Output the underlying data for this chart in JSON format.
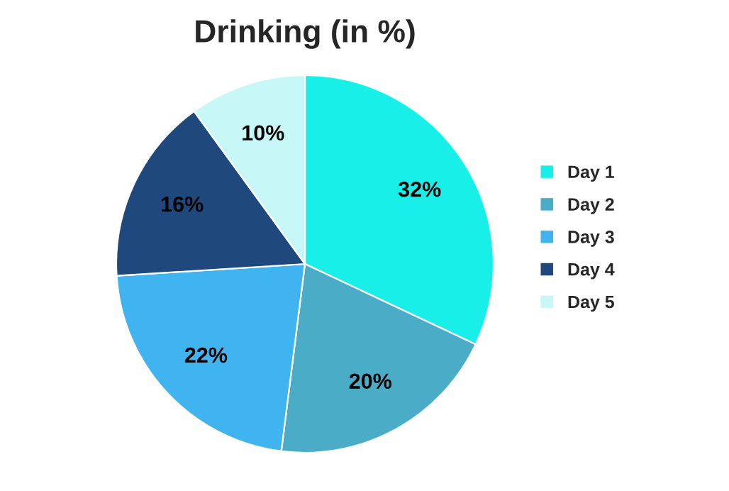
{
  "chart_data": {
    "type": "pie",
    "title": "Drinking (in %)",
    "categories": [
      "Day 1",
      "Day 2",
      "Day 3",
      "Day 4",
      "Day 5"
    ],
    "values": [
      32,
      20,
      22,
      16,
      10
    ],
    "colors": [
      "#19efe9",
      "#4aacc6",
      "#3fb4f0",
      "#1f497d",
      "#c8f7f7"
    ],
    "data_labels": true,
    "value_labels": [
      "32%",
      "20%",
      "22%",
      "16%",
      "10%"
    ],
    "legend": "right"
  }
}
